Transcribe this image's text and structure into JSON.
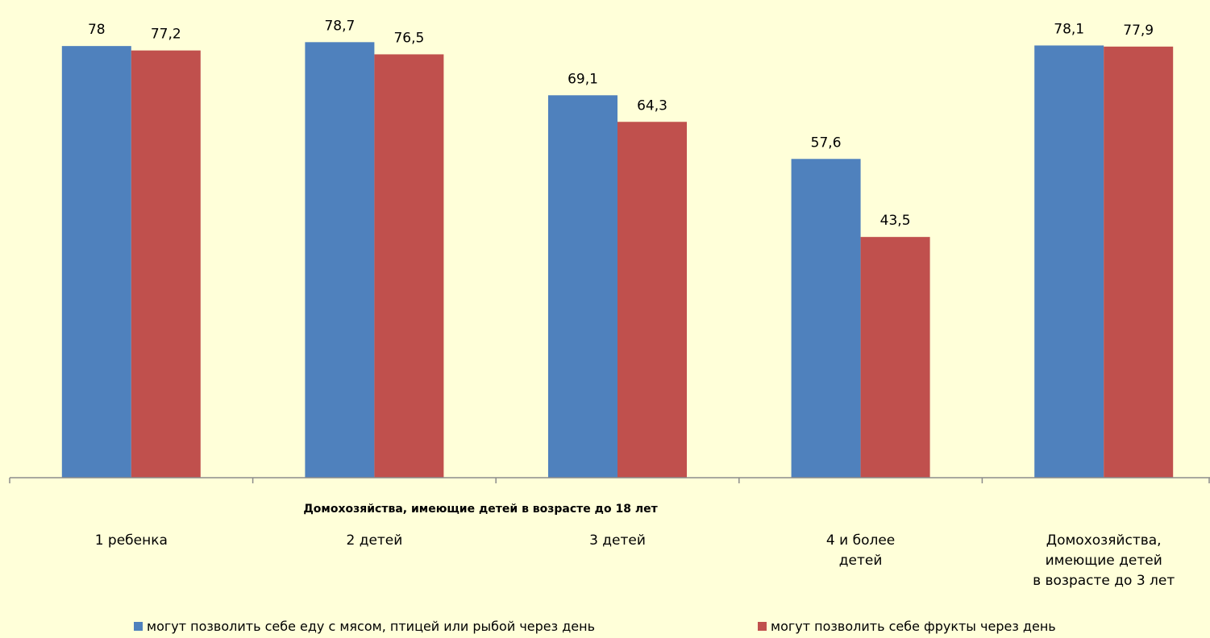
{
  "chart_data": {
    "type": "bar",
    "group_title": "Домохозяйства, имеющие детей в возрасте до 18 лет",
    "categories": [
      [
        "1 ребенка"
      ],
      [
        "2 детей"
      ],
      [
        "3 детей"
      ],
      [
        "4 и более",
        "детей"
      ],
      [
        "Домохозяйства,",
        "имеющие детей",
        "в  возрасте до 3 лет"
      ]
    ],
    "series": [
      {
        "name": "могут позволить себе еду с мясом, птицей или рыбой через день",
        "color": "#4F81BD",
        "values": [
          78,
          78.7,
          69.1,
          57.6,
          78.1
        ],
        "labels": [
          "78",
          "78,7",
          "69,1",
          "57,6",
          "78,1"
        ]
      },
      {
        "name": "могут позволить себе фрукты через день",
        "color": "#C0504D",
        "values": [
          77.2,
          76.5,
          64.3,
          43.5,
          77.9
        ],
        "labels": [
          "77,2",
          "76,5",
          "64,3",
          "43,5",
          "77,9"
        ]
      }
    ],
    "ylim": [
      0,
      100
    ],
    "grid": false,
    "legend_position": "bottom"
  }
}
